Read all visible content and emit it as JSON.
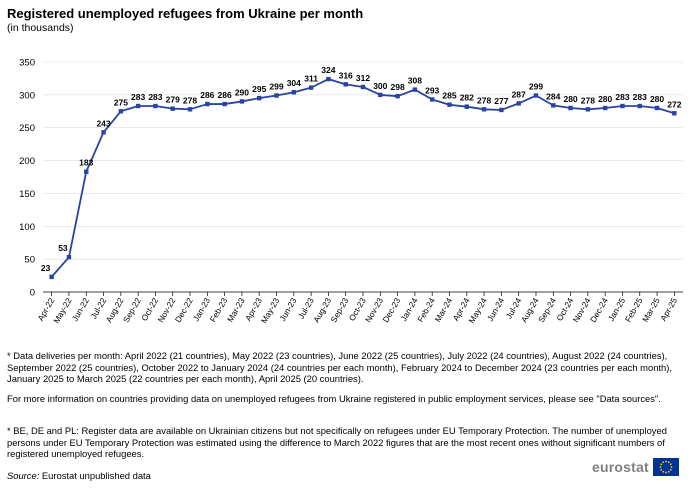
{
  "header": {
    "title": "Registered unemployed refugees from Ukraine per month",
    "subtitle": "(in thousands)"
  },
  "chart_data": {
    "type": "line",
    "title": "Registered unemployed refugees from Ukraine per month",
    "subtitle": "(in thousands)",
    "xlabel": "",
    "ylabel": "",
    "ylim": [
      0,
      350
    ],
    "yticks": [
      0,
      50,
      100,
      150,
      200,
      250,
      300,
      350
    ],
    "grid": true,
    "legend": "none",
    "categories": [
      "Apr-22",
      "May-22",
      "Jun-22",
      "Jul-22",
      "Aug-22",
      "Sep-22",
      "Oct-22",
      "Nov-22",
      "Dec-22",
      "Jan-23",
      "Feb-23",
      "Mar-23",
      "Apr-23",
      "May-23",
      "Jun-23",
      "Jul-23",
      "Aug-23",
      "Sep-23",
      "Oct-23",
      "Nov-23",
      "Dec-23",
      "Jan-24",
      "Feb-24",
      "Mar-24",
      "Apr-24",
      "May-24",
      "Jun-24",
      "Jul-24",
      "Aug-24",
      "Sep-24",
      "Oct-24",
      "Nov-24",
      "Dec-24",
      "Jan-25",
      "Feb-25",
      "Mar-25",
      "Apr-25"
    ],
    "values": [
      23,
      53,
      183,
      243,
      275,
      283,
      283,
      279,
      278,
      286,
      286,
      290,
      295,
      299,
      304,
      311,
      324,
      316,
      312,
      300,
      298,
      308,
      293,
      285,
      282,
      278,
      277,
      287,
      299,
      284,
      280,
      278,
      280,
      283,
      283,
      280,
      272
    ],
    "color": "#2944a2"
  },
  "notes": [
    "* Data deliveries per month: April 2022 (21 countries), May 2022 (23 countries), June 2022 (25 countries), July 2022 (24 countries), August 2022 (24 countries), September 2022 (25 countries), October 2022 to January 2024 (24 countries per each month), February 2024 to December 2024 (23 countries per each month), January 2025 to March 2025 (22 countries per each month), April 2025 (20 countries).",
    "For more information on countries providing data on unemployed refugees from Ukraine registered in public employment services, please see \"Data sources\".",
    "* BE, DE and PL: Register data are available on Ukrainian citizens but not specifically on refugees under EU Temporary Protection. The number of unemployed persons under EU Temporary Protection was estimated using the difference to March 2022 figures that are the most recent ones without significant numbers of registered unemployed refugees."
  ],
  "source": {
    "label": "Source:",
    "text": " Eurostat unpublished data"
  },
  "logo": {
    "text": "eurostat",
    "flag_color": "#003399",
    "star_color": "#ffcc00"
  }
}
